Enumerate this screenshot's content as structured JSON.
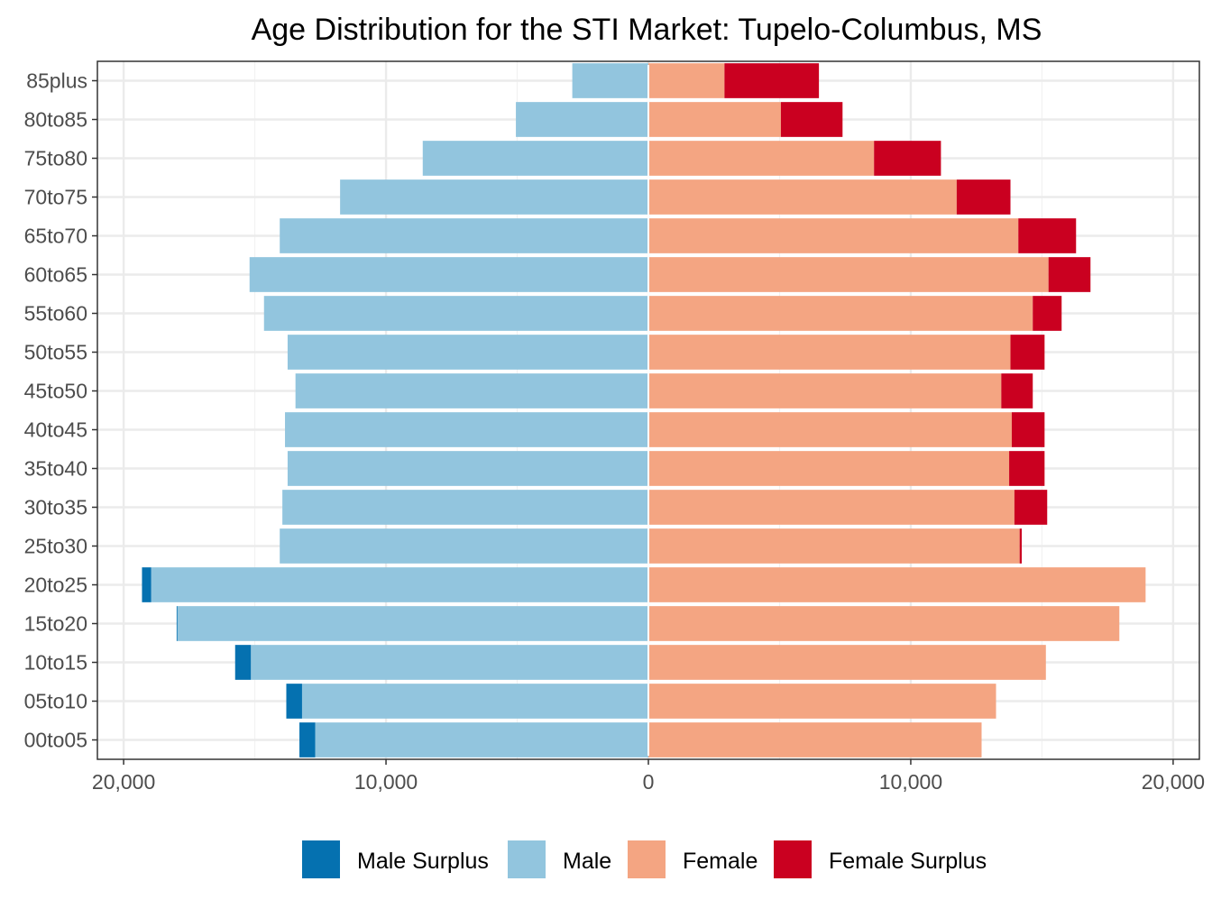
{
  "chart_data": {
    "type": "bar",
    "orientation": "horizontal",
    "title": "Age Distribution for the STI Market: Tupelo-Columbus, MS",
    "xlabel": "",
    "ylabel": "",
    "xlim": [
      -21000,
      21000
    ],
    "x_ticks": [
      {
        "value": -20000,
        "label": "20,000"
      },
      {
        "value": -10000,
        "label": "10,000"
      },
      {
        "value": 0,
        "label": "0"
      },
      {
        "value": 10000,
        "label": "10,000"
      },
      {
        "value": 20000,
        "label": "20,000"
      }
    ],
    "grid": true,
    "legend_position": "bottom",
    "categories": [
      "00to05",
      "05to10",
      "10to15",
      "15to20",
      "20to25",
      "25to30",
      "30to35",
      "35to40",
      "40to45",
      "45to50",
      "50to55",
      "55to60",
      "60to65",
      "65to70",
      "70to75",
      "75to80",
      "80to85",
      "85plus"
    ],
    "series": [
      {
        "name": "Male Surplus",
        "color": "#0571b0",
        "side": "left",
        "values": [
          600,
          600,
          600,
          30,
          350,
          0,
          0,
          0,
          0,
          0,
          0,
          0,
          0,
          0,
          0,
          0,
          0,
          0
        ]
      },
      {
        "name": "Male",
        "color": "#92c5de",
        "side": "left",
        "values": [
          12700,
          13200,
          15150,
          17950,
          18950,
          14050,
          13950,
          13750,
          13850,
          13450,
          13750,
          14650,
          15200,
          14050,
          11750,
          8600,
          5050,
          2900
        ]
      },
      {
        "name": "Female",
        "color": "#f4a582",
        "side": "right",
        "values": [
          12700,
          13250,
          15150,
          17950,
          18950,
          14150,
          13950,
          13750,
          13850,
          13450,
          13800,
          14650,
          15250,
          14100,
          11750,
          8600,
          5050,
          2900
        ]
      },
      {
        "name": "Female Surplus",
        "color": "#ca0020",
        "side": "right",
        "values": [
          0,
          0,
          0,
          0,
          0,
          80,
          1250,
          1350,
          1250,
          1200,
          1300,
          1100,
          1600,
          2200,
          2050,
          2550,
          2350,
          3600
        ]
      }
    ]
  }
}
